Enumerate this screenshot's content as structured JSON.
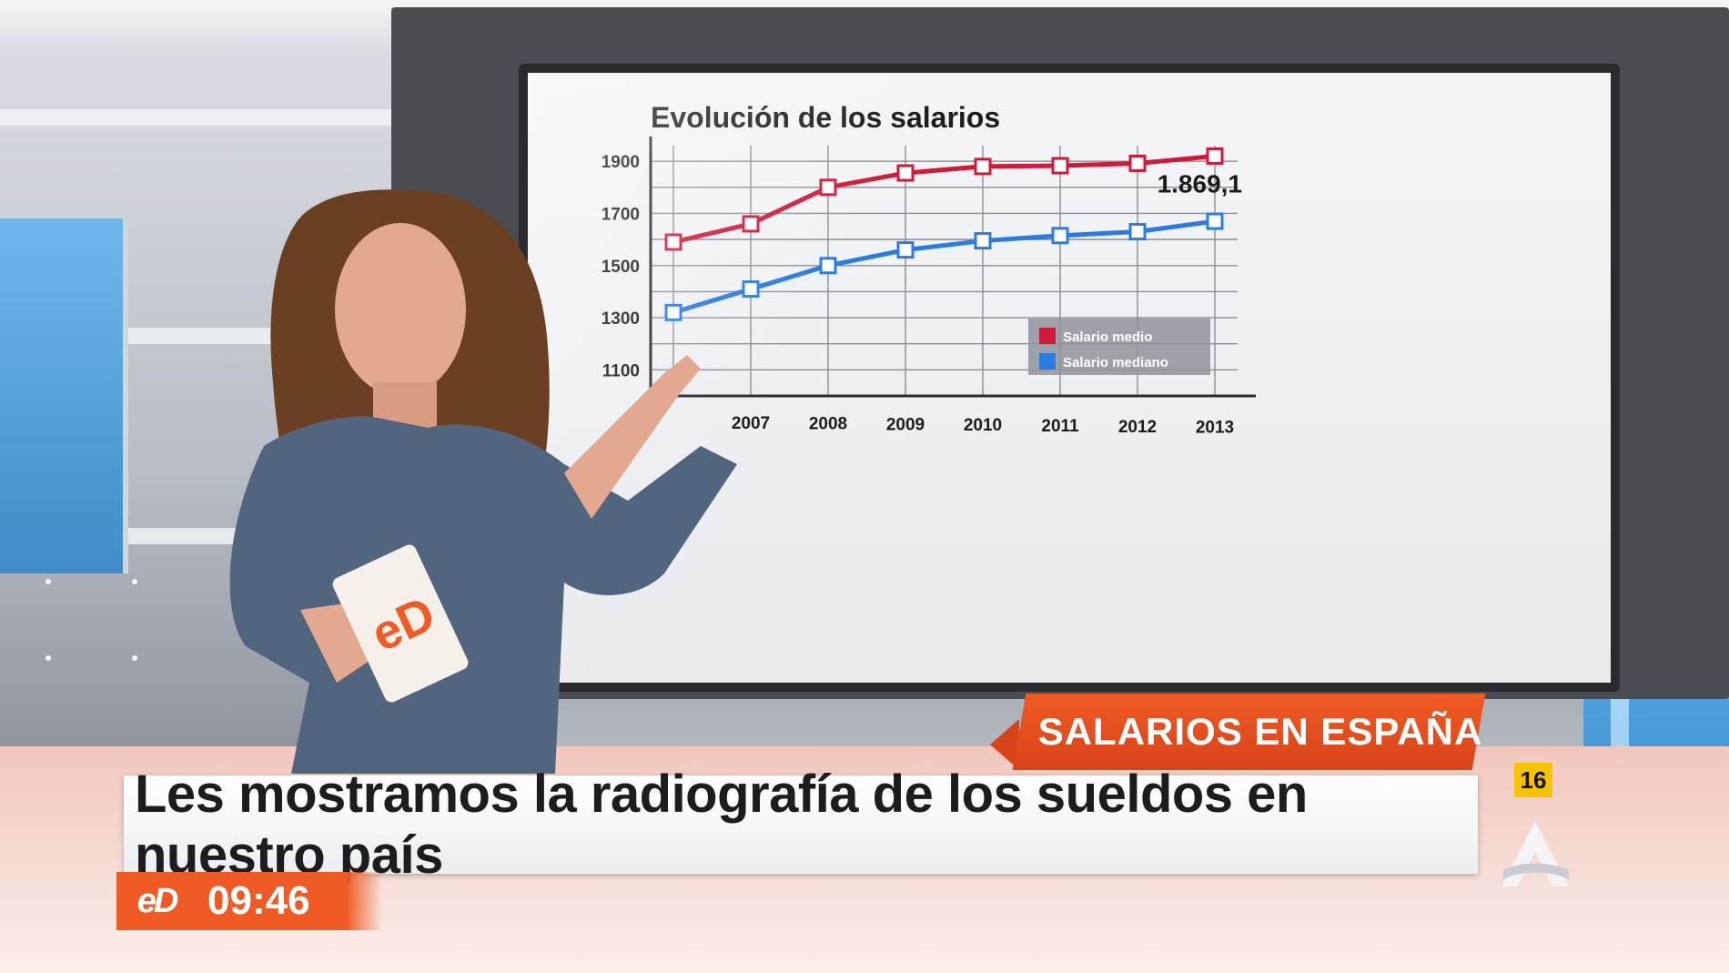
{
  "chart_data": {
    "type": "line",
    "title": "Evolución de los salarios",
    "x": [
      "",
      "2007",
      "2008",
      "2009",
      "2010",
      "2011",
      "2012",
      "2013"
    ],
    "y_ticks": [
      "1900",
      "1700",
      "1500",
      "1300",
      "1100"
    ],
    "ylim": [
      1000,
      1960
    ],
    "grid": true,
    "legend_position": "bottom-right",
    "series": [
      {
        "name": "Salario medio",
        "color": "#d11a3a",
        "values": [
          1590,
          1660,
          1800,
          1855,
          1880,
          1883,
          1892,
          1920
        ]
      },
      {
        "name": "Salario mediano",
        "color": "#2a7be4",
        "values": [
          1320,
          1410,
          1500,
          1560,
          1595,
          1615,
          1630,
          1670
        ]
      }
    ],
    "annotation": "1.869,1"
  },
  "lower_third": {
    "topic": "SALARIOS EN ESPAÑA",
    "headline": "Les mostramos la radiografía de los sueldos en nuestro país",
    "program_logo": "eD",
    "clock": "09:46",
    "rating": "16"
  },
  "colors": {
    "accent": "#f05a24",
    "rating": "#f5c400"
  }
}
